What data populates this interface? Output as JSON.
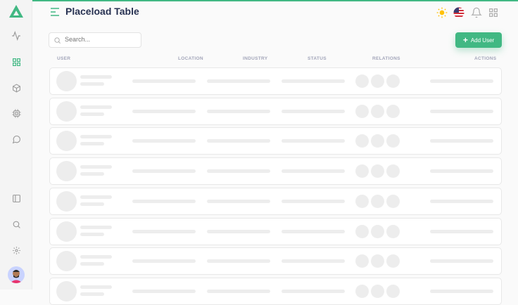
{
  "header": {
    "title": "Placeload Table"
  },
  "toolbar": {
    "search_placeholder": "Search...",
    "add_user_label": "Add User"
  },
  "table": {
    "columns": [
      "USER",
      "LOCATION",
      "INDUSTRY",
      "STATUS",
      "RELATIONS",
      "ACTIONS"
    ],
    "placeholder_rows": 8
  },
  "sidebar": {
    "top_icons": [
      "activity-icon",
      "grid-icon",
      "box-icon",
      "cpu-icon",
      "message-icon"
    ],
    "bottom_icons": [
      "sidebar-icon",
      "search-icon",
      "settings-icon"
    ]
  },
  "colors": {
    "accent": "#41b883",
    "title": "#283252"
  }
}
